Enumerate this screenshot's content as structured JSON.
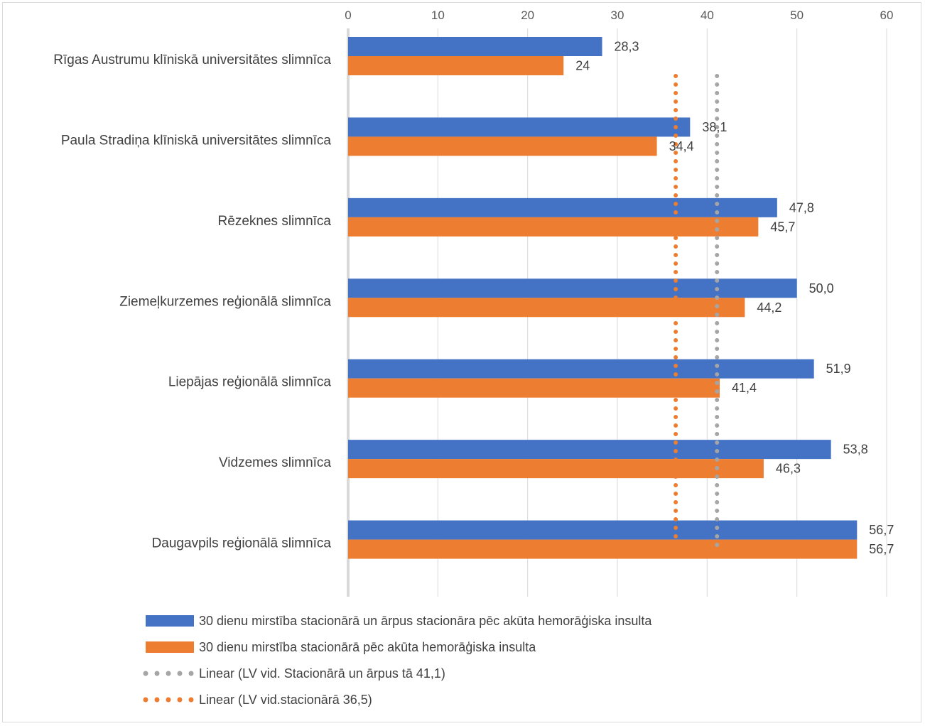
{
  "chart_data": {
    "type": "bar",
    "orientation": "horizontal",
    "categories": [
      "Rīgas Austrumu klīniskā universitātes slimnīca",
      "Paula Stradiņa klīniskā universitātes slimnīca",
      "Rēzeknes slimnīca",
      "Ziemeļkurzemes reģionālā slimnīca",
      "Liepājas reģionālā slimnīca",
      "Vidzemes slimnīca",
      "Daugavpils reģionālā slimnīca"
    ],
    "series": [
      {
        "name": "30 dienu mirstība stacionārā un ārpus stacionāra pēc akūta hemorāģiska insulta",
        "color": "#4472C4",
        "values": [
          28.3,
          38.1,
          47.8,
          50.0,
          51.9,
          53.8,
          56.7
        ],
        "labels": [
          "28,3",
          "38,1",
          "47,8",
          "50,0",
          "51,9",
          "53,8",
          "56,7"
        ]
      },
      {
        "name": "30 dienu mirstība stacionārā pēc akūta hemorāģiska insulta",
        "color": "#ED7D31",
        "values": [
          24,
          34.4,
          45.7,
          44.2,
          41.4,
          46.3,
          56.7
        ],
        "labels": [
          "24",
          "34,4",
          "45,7",
          "44,2",
          "41,4",
          "46,3",
          "56,7"
        ]
      }
    ],
    "reference_lines": [
      {
        "name": "Linear (LV vid. Stacionārā un ārpus tā 41,1)",
        "value": 41.1,
        "color": "#A5A5A5",
        "style": "dotted"
      },
      {
        "name": "Linear (LV vid.stacionārā 36,5)",
        "value": 36.5,
        "color": "#ED7D31",
        "style": "dotted"
      }
    ],
    "x_ticks": [
      "0",
      "10",
      "20",
      "30",
      "40",
      "50",
      "60"
    ],
    "xlim": [
      0,
      60
    ],
    "x_axis_position": "top",
    "grid": true,
    "legend_position": "bottom"
  }
}
